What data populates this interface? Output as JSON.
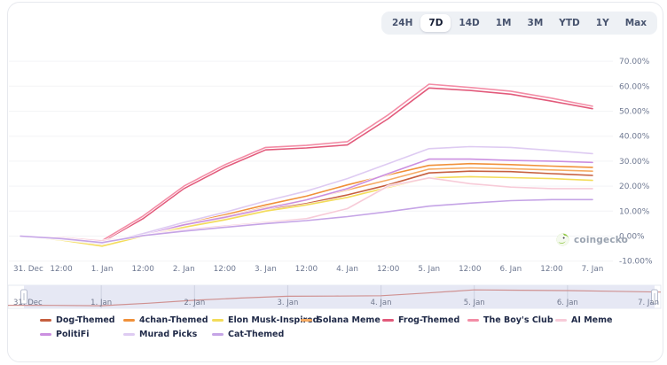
{
  "range_selector": {
    "options": [
      "24H",
      "7D",
      "14D",
      "1M",
      "3M",
      "YTD",
      "1Y",
      "Max"
    ],
    "active": "7D"
  },
  "watermark": {
    "label": "coingecko"
  },
  "chart_data": {
    "type": "line",
    "title": "",
    "xlabel": "",
    "ylabel": "",
    "ylim": [
      -10,
      70
    ],
    "grid": true,
    "legend_position": "bottom",
    "y_axis_side": "right",
    "y_ticks": [
      "70.00%",
      "60.00%",
      "50.00%",
      "40.00%",
      "30.00%",
      "20.00%",
      "10.00%",
      "0.00%",
      "-10.00%"
    ],
    "y_tick_values": [
      70,
      60,
      50,
      40,
      30,
      20,
      10,
      0,
      -10
    ],
    "x_labels": [
      "31. Dec",
      "12:00",
      "1. Jan",
      "12:00",
      "2. Jan",
      "12:00",
      "3. Jan",
      "12:00",
      "4. Jan",
      "12:00",
      "5. Jan",
      "12:00",
      "6. Jan",
      "12:00",
      "7. Jan"
    ],
    "series": [
      {
        "name": "Dog-Themed",
        "color": "#c65f3f",
        "values": [
          0,
          -1.3,
          -3,
          0.5,
          4,
          7,
          10.5,
          13,
          16.5,
          20.5,
          25.3,
          26,
          25.8,
          25,
          24.3
        ]
      },
      {
        "name": "4chan-Themed",
        "color": "#f0913a",
        "values": [
          0,
          -1.4,
          -3.2,
          1,
          5,
          8.5,
          12.5,
          16,
          20.5,
          24.5,
          28.3,
          29,
          28.6,
          28,
          27.5
        ]
      },
      {
        "name": "Elon Musk-Inspired",
        "color": "#f3dc5a",
        "values": [
          0,
          -1.6,
          -4,
          0,
          3.5,
          6.5,
          10,
          12.5,
          15.5,
          19.5,
          23.3,
          23.8,
          23.4,
          23,
          22.3
        ]
      },
      {
        "name": "Solana Meme",
        "color": "#f6ab63",
        "values": [
          0,
          -1,
          -2.7,
          1,
          4.5,
          7.8,
          11.5,
          14.5,
          18.5,
          22.5,
          26.8,
          27.3,
          27,
          26.5,
          26
        ]
      },
      {
        "name": "Frog-Themed",
        "color": "#e25a7b",
        "values": [
          0,
          -0.8,
          -2.3,
          7,
          19,
          27.5,
          34.5,
          35.3,
          36.5,
          47,
          59.3,
          58.3,
          56.8,
          54,
          51
        ]
      },
      {
        "name": "The Boy's Club",
        "color": "#f38da6",
        "values": [
          0,
          -0.5,
          -1.8,
          8,
          20,
          28.5,
          35.5,
          36.3,
          37.8,
          48.5,
          60.8,
          59.5,
          58,
          55.2,
          52
        ]
      },
      {
        "name": "AI Meme",
        "color": "#f7cbd8",
        "values": [
          0,
          -0.6,
          -2,
          0.5,
          2.5,
          4,
          5.5,
          7,
          11,
          20,
          23.3,
          21,
          19.6,
          19,
          19
        ]
      },
      {
        "name": "PolitiFi",
        "color": "#cb8fe0",
        "values": [
          0,
          -1,
          -2.6,
          0.8,
          4.5,
          7.5,
          11,
          14.5,
          19,
          25,
          30.8,
          30.8,
          30.3,
          30,
          29.5
        ]
      },
      {
        "name": "Murad Picks",
        "color": "#decbf2",
        "values": [
          0,
          -1.2,
          -3,
          1,
          5.5,
          9.5,
          14,
          18,
          23,
          29,
          35,
          35.8,
          35.5,
          34.3,
          33
        ]
      },
      {
        "name": "Cat-Themed",
        "color": "#c5a4e6",
        "values": [
          0,
          -1,
          -2.6,
          0.2,
          2,
          3.5,
          5,
          6.2,
          7.8,
          9.8,
          12,
          13.2,
          14.2,
          14.6,
          14.6
        ]
      }
    ],
    "navigator": {
      "labels": [
        "31. Dec",
        "1. Jan",
        "2. Jan",
        "3. Jan",
        "4. Jan",
        "5. Jan",
        "6. Jan",
        "7. Jan"
      ],
      "line_color": "#cf9191",
      "selection_fill": "#e6e8f4",
      "shape_series": "The Boy's Club"
    }
  }
}
